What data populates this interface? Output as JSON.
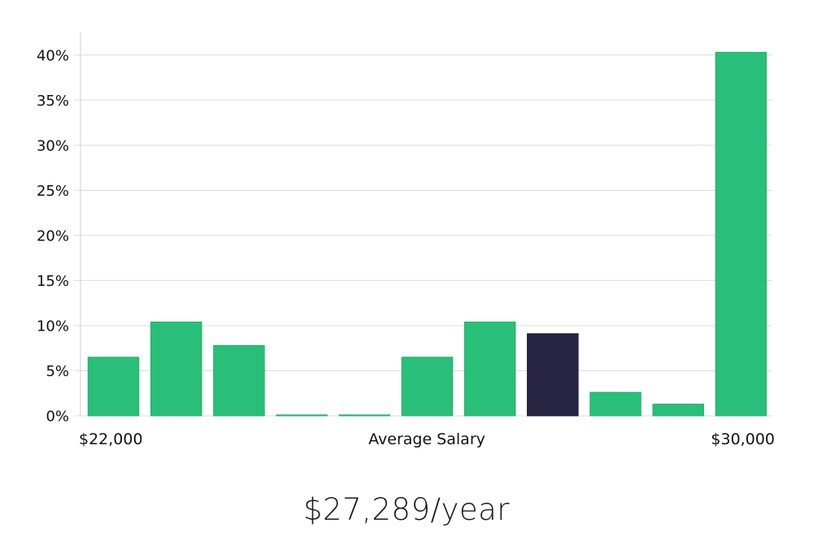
{
  "chart_data": {
    "type": "bar",
    "values": [
      6.5,
      10.4,
      7.8,
      0.1,
      0.1,
      6.5,
      10.4,
      9.1,
      2.6,
      1.3,
      40.3
    ],
    "highlight_index": 7,
    "ylim": [
      0,
      42.5
    ],
    "yticks": [
      0,
      5,
      10,
      15,
      20,
      25,
      30,
      35,
      40
    ],
    "ytick_suffix": "%",
    "xlabel": "Average Salary",
    "x_min_label": "$22,000",
    "x_max_label": "$30,000",
    "grid": true
  },
  "colors": {
    "bar": "#2abf78",
    "highlight": "#282444",
    "grid": "#dcdcdc"
  },
  "summary": {
    "salary_text": "$27,289/year"
  }
}
